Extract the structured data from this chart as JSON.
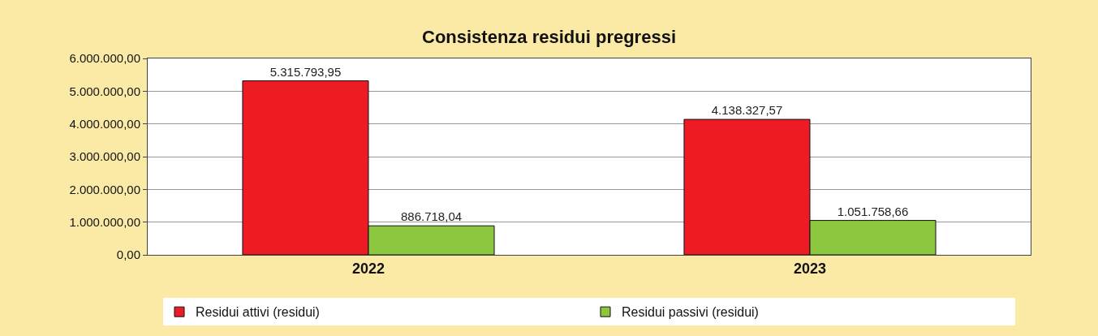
{
  "chart_data": {
    "type": "bar",
    "title": "Consistenza residui pregressi",
    "categories": [
      "2022",
      "2023"
    ],
    "series": [
      {
        "name": "Residui attivi (residui)",
        "color": "#ed1c24",
        "values": [
          5315793.95,
          4138327.57
        ],
        "value_labels": [
          "5.315.793,95",
          "4.138.327,57"
        ]
      },
      {
        "name": "Residui passivi (residui)",
        "color": "#8dc63f",
        "values": [
          886718.04,
          1051758.66
        ],
        "value_labels": [
          "886.718,04",
          "1.051.758,66"
        ]
      }
    ],
    "ylim": [
      0,
      6000000
    ],
    "yticks": [
      {
        "value": 0,
        "label": "0,00"
      },
      {
        "value": 1000000,
        "label": "1.000.000,00"
      },
      {
        "value": 2000000,
        "label": "2.000.000,00"
      },
      {
        "value": 3000000,
        "label": "3.000.000,00"
      },
      {
        "value": 4000000,
        "label": "4.000.000,00"
      },
      {
        "value": 5000000,
        "label": "5.000.000,00"
      },
      {
        "value": 6000000,
        "label": "6.000.000,00"
      }
    ],
    "grid": "y",
    "legend": "bottom"
  }
}
